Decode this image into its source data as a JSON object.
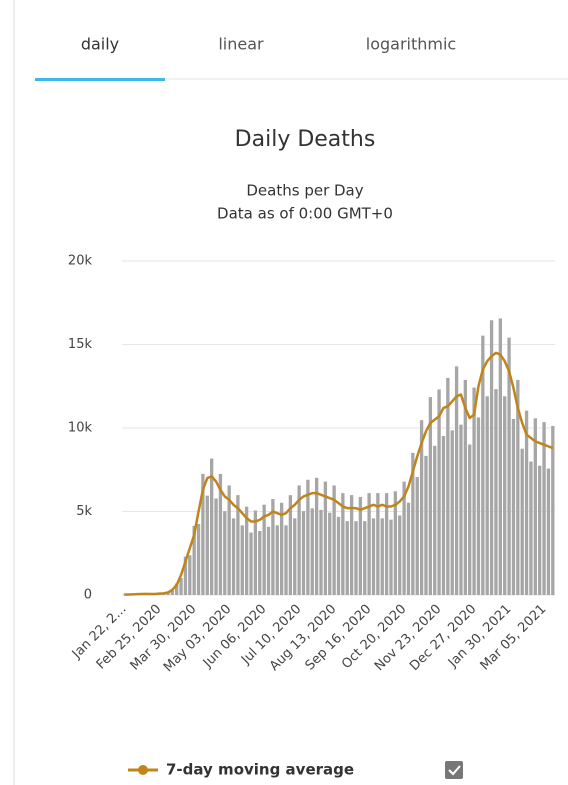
{
  "tabs": [
    "daily",
    "linear",
    "logarithmic"
  ],
  "chart_data": {
    "type": "bar",
    "title": "Daily Deaths",
    "subtitle": [
      "Deaths per Day",
      "Data as of 0:00 GMT+0"
    ],
    "categories": [
      "Jan 22, 2...",
      null,
      null,
      null,
      null,
      null,
      null,
      null,
      "Feb 25, 2020",
      null,
      null,
      null,
      null,
      null,
      null,
      null,
      "Mar 30, 2020",
      null,
      null,
      null,
      null,
      null,
      null,
      null,
      "May 03, 2020",
      null,
      null,
      null,
      null,
      null,
      null,
      null,
      "Jun 06, 2020",
      null,
      null,
      null,
      null,
      null,
      null,
      null,
      "Jul 10, 2020",
      null,
      null,
      null,
      null,
      null,
      null,
      null,
      "Aug 13, 2020",
      null,
      null,
      null,
      null,
      null,
      null,
      null,
      "Sep 16, 2020",
      null,
      null,
      null,
      null,
      null,
      null,
      null,
      "Oct 20, 2020",
      null,
      null,
      null,
      null,
      null,
      null,
      null,
      "Nov 23, 2020",
      null,
      null,
      null,
      null,
      null,
      null,
      null,
      "Dec 27, 2020",
      null,
      null,
      null,
      null,
      null,
      null,
      null,
      "Jan 30, 2021",
      null,
      null,
      null,
      null,
      null,
      null,
      null,
      "Mar 05, 2021",
      null,
      null
    ],
    "series": [
      {
        "color": "#a6a6a6",
        "values": [
          20,
          30,
          50,
          40,
          70,
          60,
          70,
          50,
          90,
          90,
          170,
          260,
          690,
          1020,
          2300,
          2380,
          4140,
          4250,
          7250,
          5950,
          8170,
          5780,
          7250,
          5020,
          6560,
          4590,
          5980,
          4170,
          5290,
          3740,
          5060,
          3830,
          5410,
          4080,
          5750,
          4170,
          5520,
          4170,
          5980,
          4590,
          6560,
          5020,
          6900,
          5190,
          7020,
          5100,
          6790,
          4930,
          6560,
          4680,
          6100,
          4420,
          5980,
          4420,
          5870,
          4420,
          6100,
          4590,
          6100,
          4590,
          6100,
          4510,
          6210,
          4760,
          6790,
          5530,
          8510,
          7060,
          10470,
          8330,
          11850,
          8930,
          12310,
          9520,
          13000,
          9860,
          13690,
          10200,
          12880,
          9010,
          12420,
          10630,
          15530,
          11900,
          16450,
          12330,
          16560,
          11900,
          15410,
          10540,
          12880,
          8760,
          11040,
          7990,
          10580,
          7740,
          10350,
          7570,
          10120
        ]
      },
      {
        "name": "7-day moving average",
        "type": "line",
        "color": "#c0841a",
        "values": [
          20,
          30,
          40,
          50,
          60,
          70,
          60,
          60,
          80,
          100,
          150,
          300,
          600,
          1200,
          2000,
          2800,
          3600,
          5000,
          6300,
          7000,
          7100,
          6800,
          6300,
          5900,
          5700,
          5400,
          5200,
          4900,
          4600,
          4400,
          4400,
          4500,
          4700,
          4800,
          5000,
          4900,
          4800,
          4900,
          5200,
          5400,
          5700,
          5900,
          6000,
          6100,
          6100,
          6000,
          5900,
          5800,
          5700,
          5500,
          5300,
          5200,
          5200,
          5200,
          5100,
          5200,
          5300,
          5400,
          5300,
          5400,
          5300,
          5300,
          5400,
          5600,
          5900,
          6500,
          7400,
          8300,
          9100,
          9800,
          10300,
          10500,
          10700,
          11200,
          11300,
          11600,
          11900,
          12000,
          11200,
          10600,
          10800,
          12500,
          13500,
          14000,
          14300,
          14500,
          14400,
          14000,
          13400,
          12400,
          11200,
          10300,
          9600,
          9400,
          9200,
          9100,
          9000,
          8900,
          8800
        ]
      }
    ],
    "ylim": [
      0,
      20000
    ],
    "yticks": [
      {
        "value": 0,
        "label": "0"
      },
      {
        "value": 5000,
        "label": "5k"
      },
      {
        "value": 10000,
        "label": "10k"
      },
      {
        "value": 15000,
        "label": "15k"
      },
      {
        "value": 20000,
        "label": "20k"
      }
    ],
    "grid": true
  }
}
